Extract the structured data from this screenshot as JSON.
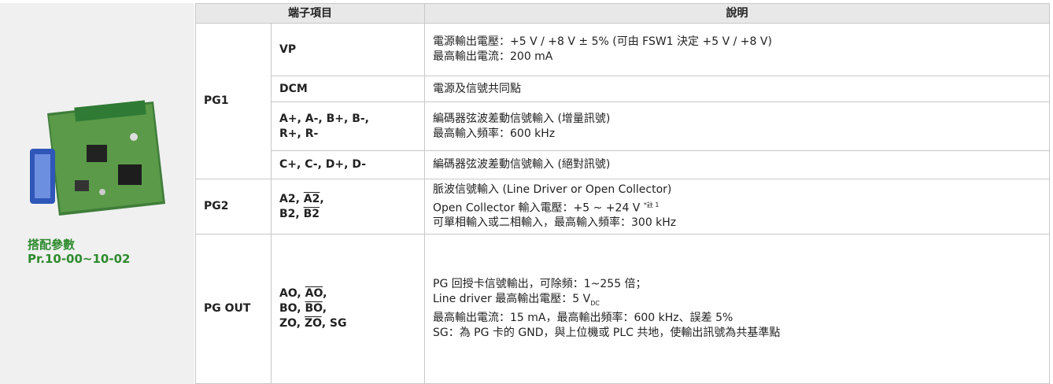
{
  "side": {
    "caption": [
      "搭配參數",
      "Pr.10-00~10-02"
    ]
  },
  "table": {
    "headers": [
      "端子項目",
      "說明"
    ],
    "groups": [
      {
        "name": "PG1",
        "rows": [
          {
            "terminal": [
              [
                "VP"
              ]
            ],
            "description": [
              "電源輸出電壓：+5 V / +8 V ± 5% (可由 FSW1 決定 +5 V / +8 V)",
              "最高輸出電流：200 mA"
            ]
          },
          {
            "terminal": [
              [
                "DCM"
              ]
            ],
            "description": [
              "電源及信號共同點"
            ]
          },
          {
            "terminal": [
              [
                "A+, A-, B+, B-,"
              ],
              [
                "R+, R-"
              ]
            ],
            "description": [
              "編碼器弦波差動信號輸入 (增量訊號)",
              "最高輸入頻率：600 kHz"
            ]
          },
          {
            "terminal": [
              [
                "C+, C-, D+, D-"
              ]
            ],
            "description": [
              "編碼器弦波差動信號輸入 (絕對訊號)"
            ]
          }
        ]
      },
      {
        "name": "PG2",
        "rows": [
          {
            "terminal": [
              [
                "A2, ",
                {
                  "over": "A2"
                },
                ","
              ],
              [
                "B2, ",
                {
                  "over": "B2"
                }
              ]
            ],
            "description": [
              "脈波信號輸入 (Line Driver or Open Collector)",
              [
                "Open Collector 輸入電壓：+5 ~ +24 V ",
                {
                  "sup": "*註 1"
                }
              ],
              "可單相輸入或二相輸入，最高輸入頻率：300 kHz"
            ]
          }
        ]
      },
      {
        "name": "PG OUT",
        "rows": [
          {
            "terminal": [
              [
                "AO, ",
                {
                  "over": "AO"
                },
                ","
              ],
              [
                "BO, ",
                {
                  "over": "BO"
                },
                ","
              ],
              [
                "ZO, ",
                {
                  "over": "ZO"
                },
                ", SG"
              ]
            ],
            "description": [
              "PG 回授卡信號輸出，可除頻：1~255 倍；",
              [
                "Line driver 最高輸出電壓：5 V",
                {
                  "sub": "DC"
                }
              ],
              "最高輸出電流：15 mA，最高輸出頻率：600 kHz、誤差 5%",
              "SG：為 PG 卡的 GND，與上位機或 PLC 共地，使輸出訊號為共基準點"
            ]
          }
        ]
      }
    ]
  }
}
